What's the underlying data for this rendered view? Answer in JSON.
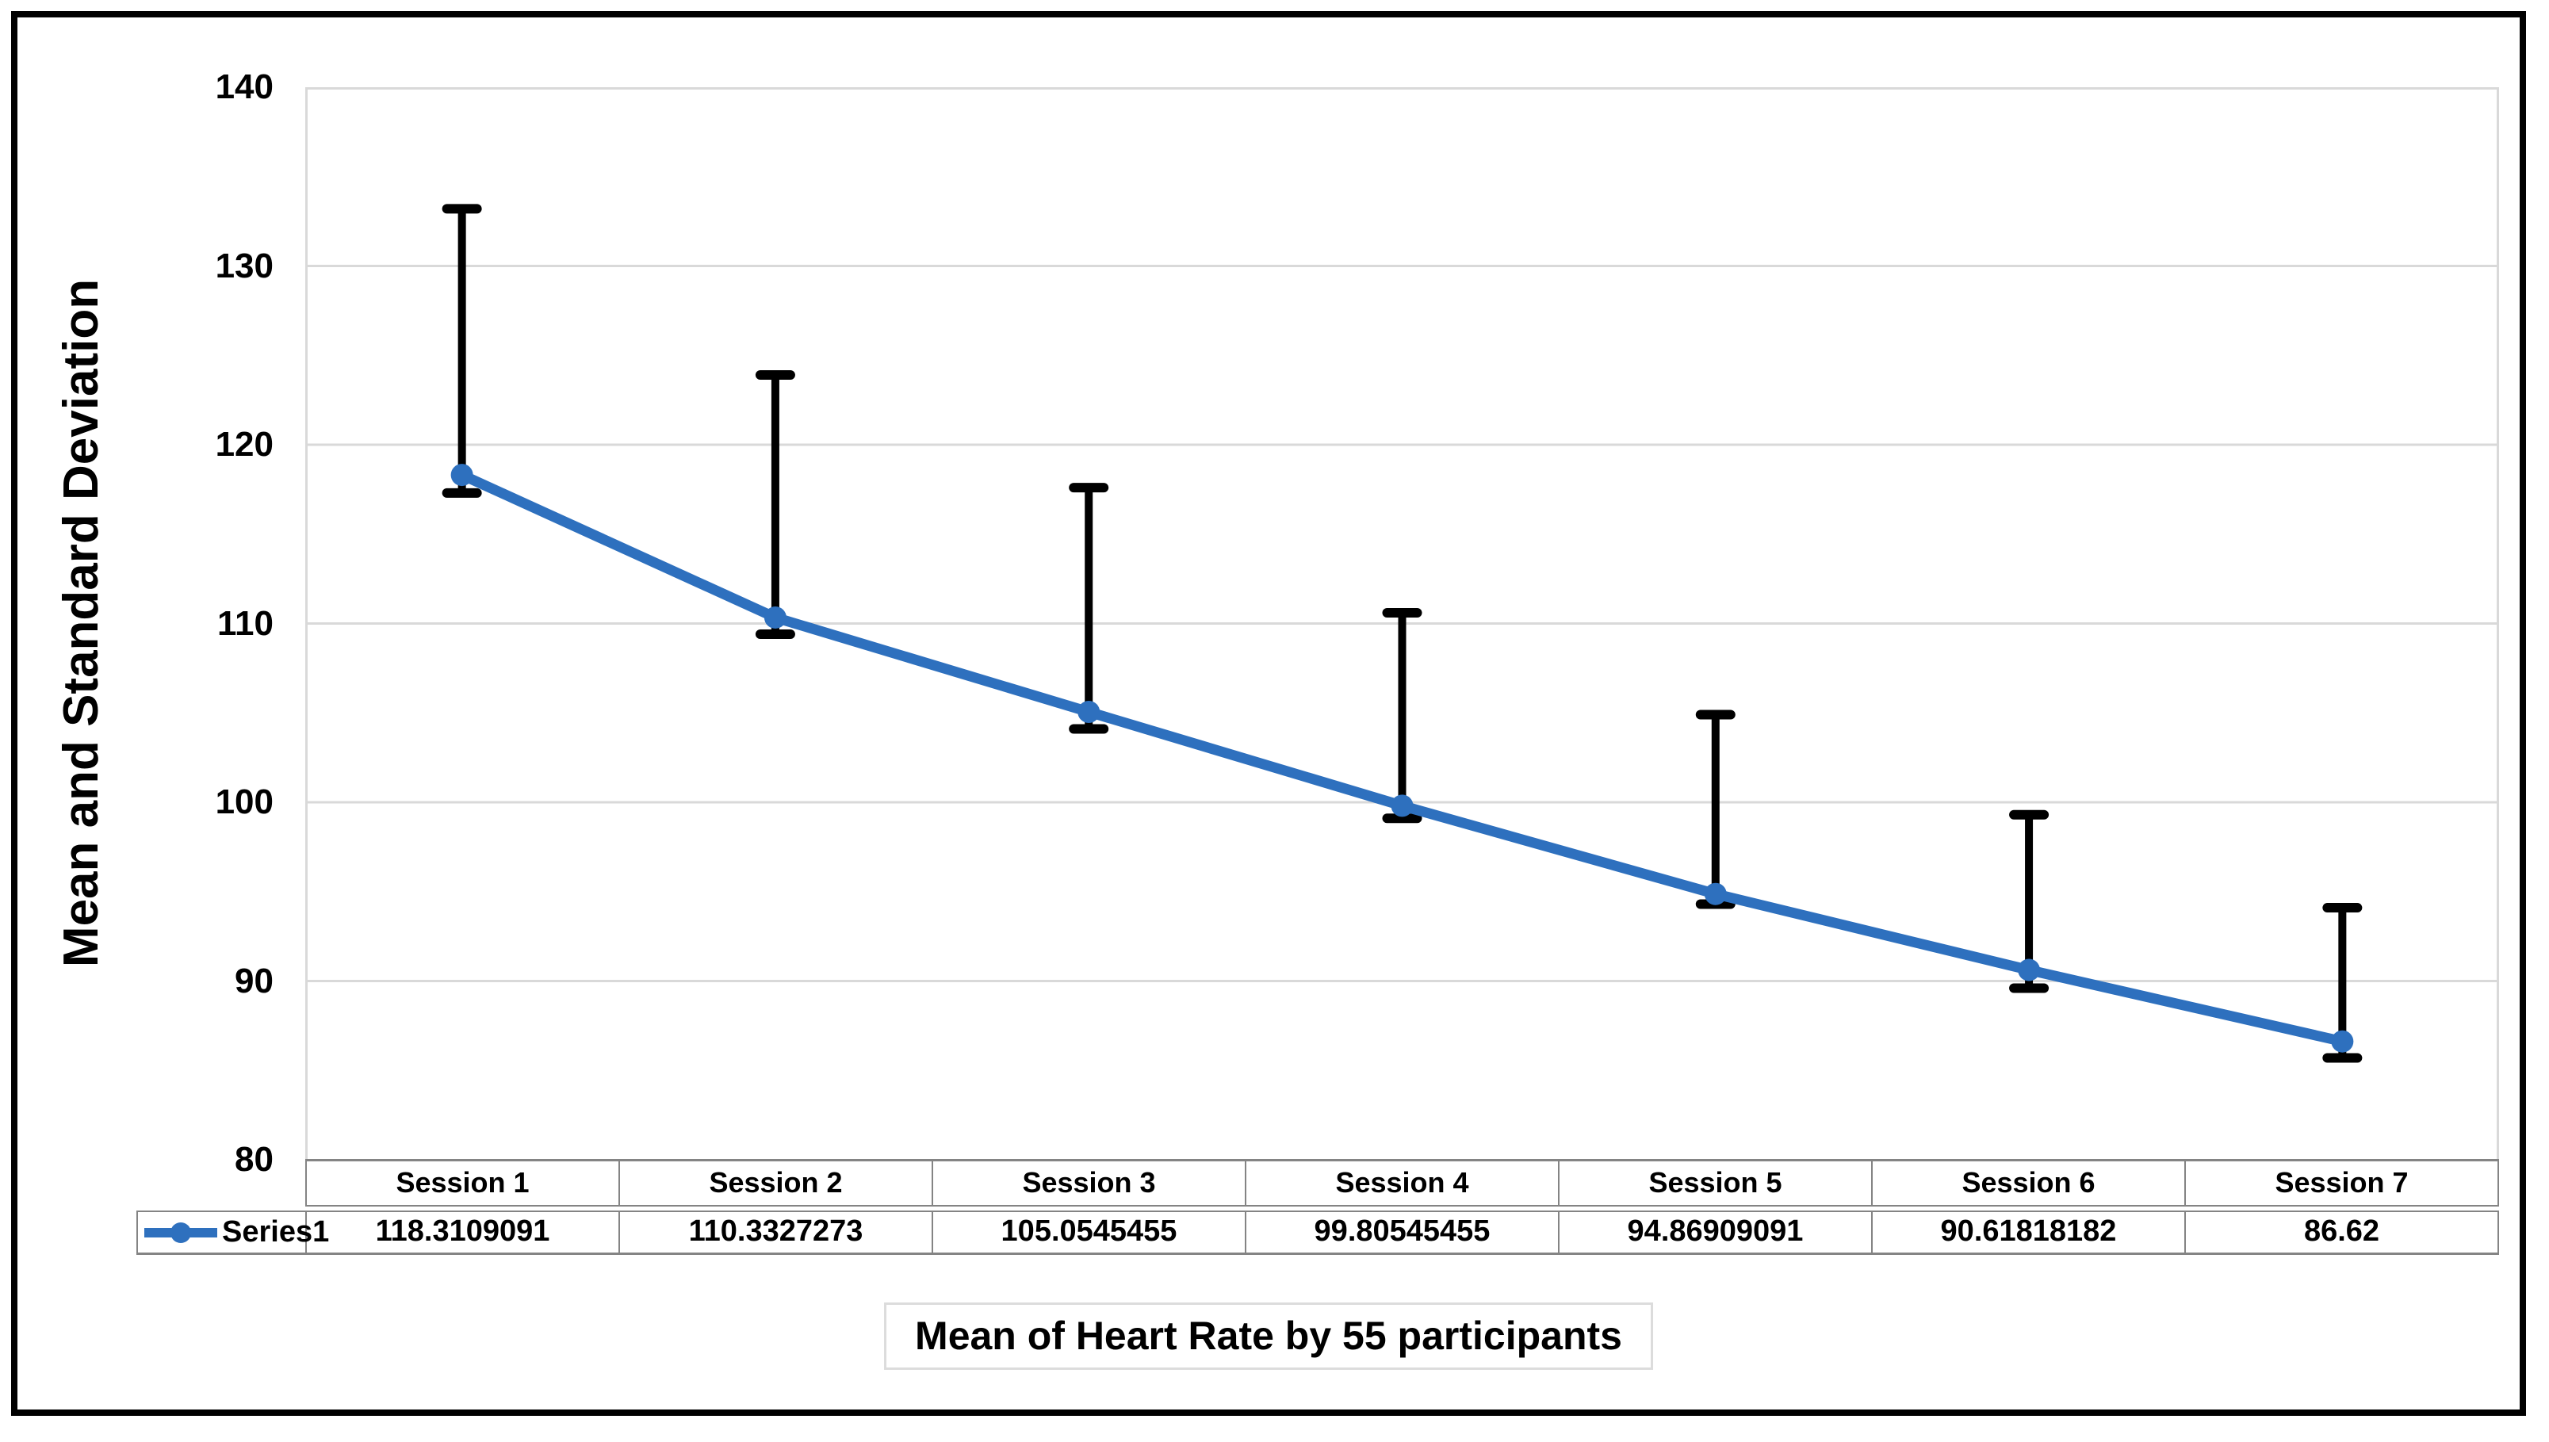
{
  "chart_data": {
    "type": "line",
    "title": "Mean of Heart Rate by 55 participants",
    "ylabel": "Mean and Standard Deviation",
    "xlabel": "",
    "categories": [
      "Session 1",
      "Session 2",
      "Session 3",
      "Session 4",
      "Session 5",
      "Session 6",
      "Session 7"
    ],
    "series": [
      {
        "name": "Series1",
        "values": [
          118.3109091,
          110.3327273,
          105.0545455,
          99.80545455,
          94.86909091,
          90.61818182,
          86.62
        ]
      }
    ],
    "error_bars": {
      "upper": [
        133.2,
        123.9,
        117.6,
        110.6,
        104.9,
        99.3,
        94.1
      ],
      "lower": [
        117.3,
        109.4,
        104.1,
        99.1,
        94.3,
        89.6,
        85.7
      ]
    },
    "ylim": [
      80,
      140
    ],
    "ytick_step": 10,
    "yticks": [
      140,
      130,
      120,
      110,
      100,
      90,
      80
    ],
    "grid": true,
    "legend_position": "data-table-left",
    "colors": {
      "series": "#2E70BE",
      "error_bar": "#000000",
      "gridline": "#D9D9D9",
      "table_border": "#848484",
      "title_border": "#DCDCDC",
      "text": "#000000",
      "frame": "#000000",
      "background": "#FFFFFF"
    }
  }
}
